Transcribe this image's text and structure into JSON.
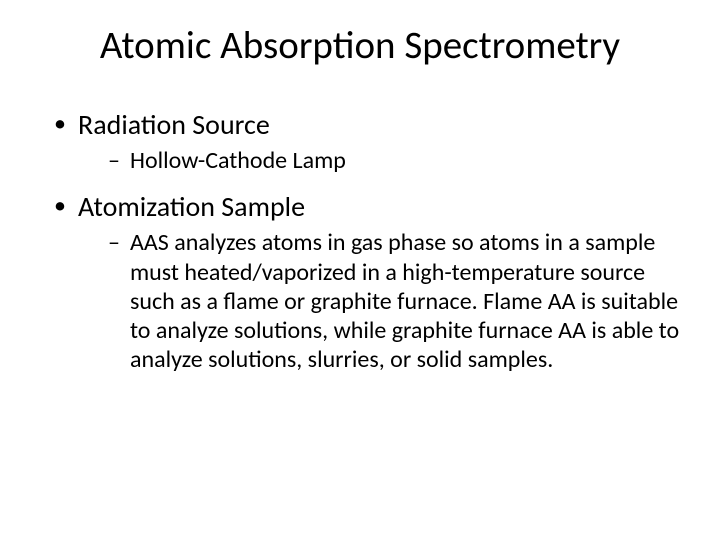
{
  "slide": {
    "title": "Atomic Absorption Spectrometry",
    "title_fontsize": 39,
    "body_fontsize_l1": 28,
    "body_fontsize_l2": 24,
    "background_color": "#ffffff",
    "text_color": "#000000",
    "font_family": "Calibri",
    "bullets": [
      {
        "label": "Radiation Source",
        "children": [
          {
            "text": "Hollow-Cathode Lamp"
          }
        ]
      },
      {
        "label": "Atomization Sample",
        "children": [
          {
            "text": "AAS analyzes atoms in gas phase so atoms in a sample must heated/vaporized in a high-temperature source such as a flame or graphite furnace. Flame AA is suitable to analyze solutions, while graphite furnace AA is able to analyze solutions, slurries, or solid samples."
          }
        ]
      }
    ]
  }
}
